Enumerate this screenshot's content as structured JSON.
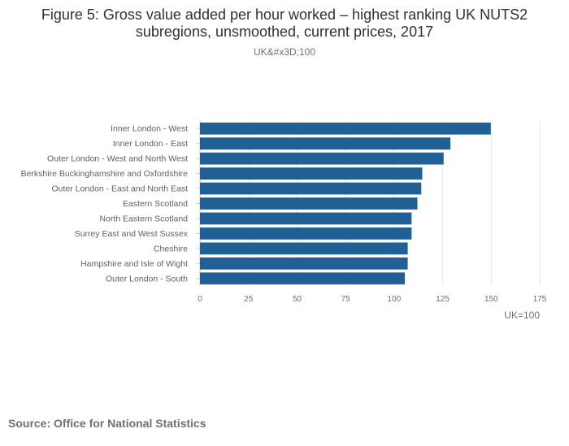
{
  "title_lines": [
    "Figure 5: Gross value added per hour worked – highest ranking UK NUTS2",
    "subregions, unsmoothed, current prices, 2017"
  ],
  "subtitle": "UK&#x3D;100",
  "source": "Source: Office for National Statistics",
  "colors": {
    "bar": "#206095",
    "grid": "#e6e6e6",
    "axis_text": "#707071",
    "label_text": "#5f5f5f"
  },
  "chart_data": {
    "type": "bar",
    "orientation": "horizontal",
    "categories": [
      "Inner London - West",
      "Inner London - East",
      "Outer London - West and North West",
      "Berkshire Buckinghamshire and Oxfordshire",
      "Outer London - East and North East",
      "Eastern Scotland",
      "North Eastern Scotland",
      "Surrey East and West Sussex",
      "Cheshire",
      "Hampshire and Isle of Wight",
      "Outer London - South"
    ],
    "values": [
      149.8,
      129,
      125.5,
      114.5,
      114,
      112,
      109,
      109,
      107,
      107,
      105.5
    ],
    "xlim": [
      0,
      175
    ],
    "xticks": [
      0,
      25,
      50,
      75,
      100,
      125,
      150,
      175
    ],
    "xlabel": "UK=100",
    "grid": true
  }
}
